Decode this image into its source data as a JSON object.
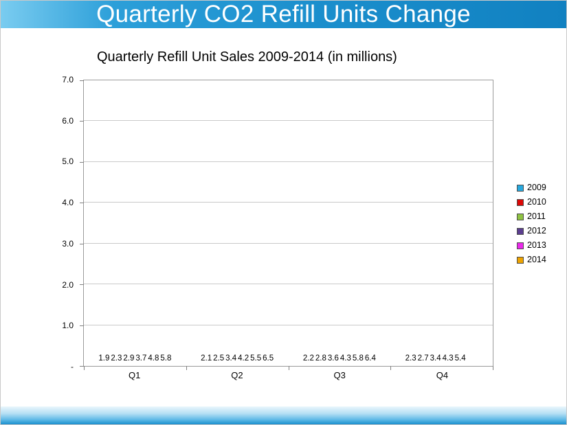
{
  "header": {
    "title": "Quarterly CO2 Refill Units Change"
  },
  "chart_data": {
    "type": "bar",
    "title": "Quarterly Refill Unit Sales 2009-2014 (in millions)",
    "categories": [
      "Q1",
      "Q2",
      "Q3",
      "Q4"
    ],
    "series": [
      {
        "name": "2009",
        "color": "#27A9DF",
        "values": [
          1.9,
          2.1,
          2.2,
          2.3
        ]
      },
      {
        "name": "2010",
        "color": "#DD0806",
        "values": [
          2.3,
          2.5,
          2.8,
          2.7
        ]
      },
      {
        "name": "2011",
        "color": "#8FC342",
        "values": [
          2.9,
          3.4,
          3.6,
          3.4
        ]
      },
      {
        "name": "2012",
        "color": "#5B3E90",
        "values": [
          3.7,
          4.2,
          4.3,
          4.3
        ]
      },
      {
        "name": "2013",
        "color": "#EB29EB",
        "values": [
          4.8,
          5.5,
          5.8,
          5.4
        ]
      },
      {
        "name": "2014",
        "color": "#EFA400",
        "values": [
          5.8,
          6.5,
          6.4,
          null
        ]
      }
    ],
    "ylim": [
      0,
      7
    ],
    "yticks": [
      {
        "value": 7,
        "label": "7.0"
      },
      {
        "value": 6,
        "label": "6.0"
      },
      {
        "value": 5,
        "label": "5.0"
      },
      {
        "value": 4,
        "label": "4.0"
      },
      {
        "value": 3,
        "label": "3.0"
      },
      {
        "value": 2,
        "label": "2.0"
      },
      {
        "value": 1,
        "label": "1.0"
      },
      {
        "value": 0,
        "label": "-"
      }
    ],
    "grid": true,
    "legend_position": "right",
    "value_labels": true
  }
}
